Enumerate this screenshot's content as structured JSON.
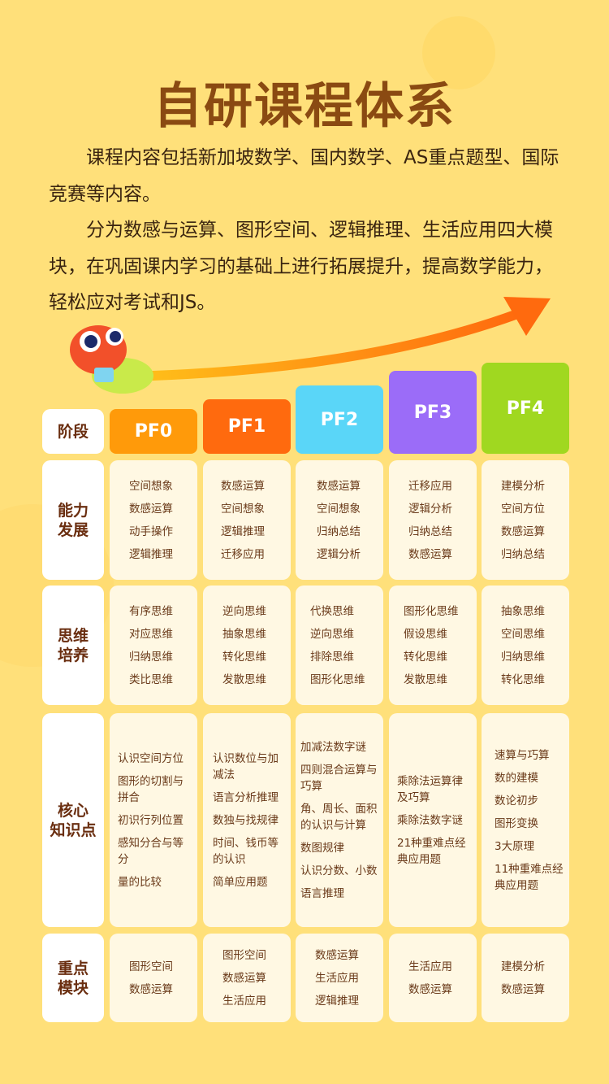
{
  "title": "自研课程体系",
  "intro": [
    "课程内容包括新加坡数学、国内数学、AS重点题型、国际竞赛等内容。",
    "分为数感与运算、图形空间、逻辑推理、生活应用四大模块，在巩固课内学习的基础上进行拓展提升，提高数学能力，轻松应对考试和JS。"
  ],
  "table": {
    "stage_label": "阶段",
    "stages": [
      {
        "name": "PF0",
        "color": "#ff9a0a"
      },
      {
        "name": "PF1",
        "color": "#ff6a0e"
      },
      {
        "name": "PF2",
        "color": "#5ad6f8"
      },
      {
        "name": "PF3",
        "color": "#9b6cf8"
      },
      {
        "name": "PF4",
        "color": "#a0d820"
      }
    ],
    "rows": [
      {
        "label": [
          "能力",
          "发展"
        ],
        "cells": [
          [
            "空间想象",
            "数感运算",
            "动手操作",
            "逻辑推理"
          ],
          [
            "数感运算",
            "空间想象",
            "逻辑推理",
            "迁移应用"
          ],
          [
            "数感运算",
            "空间想象",
            "归纳总结",
            "逻辑分析"
          ],
          [
            "迁移应用",
            "逻辑分析",
            "归纳总结",
            "数感运算"
          ],
          [
            "建模分析",
            "空间方位",
            "数感运算",
            "归纳总结"
          ]
        ]
      },
      {
        "label": [
          "思维",
          "培养"
        ],
        "cells": [
          [
            "有序思维",
            "对应思维",
            "归纳思维",
            "类比思维"
          ],
          [
            "逆向思维",
            "抽象思维",
            "转化思维",
            "发散思维"
          ],
          [
            "代换思维",
            "逆向思维",
            "排除思维",
            "图形化思维"
          ],
          [
            "图形化思维",
            "假设思维",
            "转化思维",
            "发散思维"
          ],
          [
            "抽象思维",
            "空间思维",
            "归纳思维",
            "转化思维"
          ]
        ]
      },
      {
        "label": [
          "核心",
          "知识点"
        ],
        "cells": [
          [
            "认识空间方位",
            "图形的切割与拼合",
            "初识行列位置",
            "感知分合与等分",
            "量的比较"
          ],
          [
            "认识数位与加减法",
            "语言分析推理",
            "数独与找规律",
            "时间、钱币等的认识",
            "简单应用题"
          ],
          [
            "加减法数字谜",
            "四则混合运算与巧算",
            "角、周长、面积的认识与计算",
            "数图规律",
            "认识分数、小数",
            "语言推理"
          ],
          [
            "乘除法运算律及巧算",
            "乘除法数字谜",
            "21种重难点经典应用题"
          ],
          [
            "速算与巧算",
            "数的建模",
            "数论初步",
            "图形变换",
            "3大原理",
            "11种重难点经典应用题"
          ]
        ]
      },
      {
        "label": [
          "重点",
          "模块"
        ],
        "cells": [
          [
            "图形空间",
            "数感运算"
          ],
          [
            "图形空间",
            "数感运算",
            "生活应用"
          ],
          [
            "数感运算",
            "生活应用",
            "逻辑推理"
          ],
          [
            "生活应用",
            "数感运算"
          ],
          [
            "建模分析",
            "数感运算"
          ]
        ]
      }
    ]
  }
}
